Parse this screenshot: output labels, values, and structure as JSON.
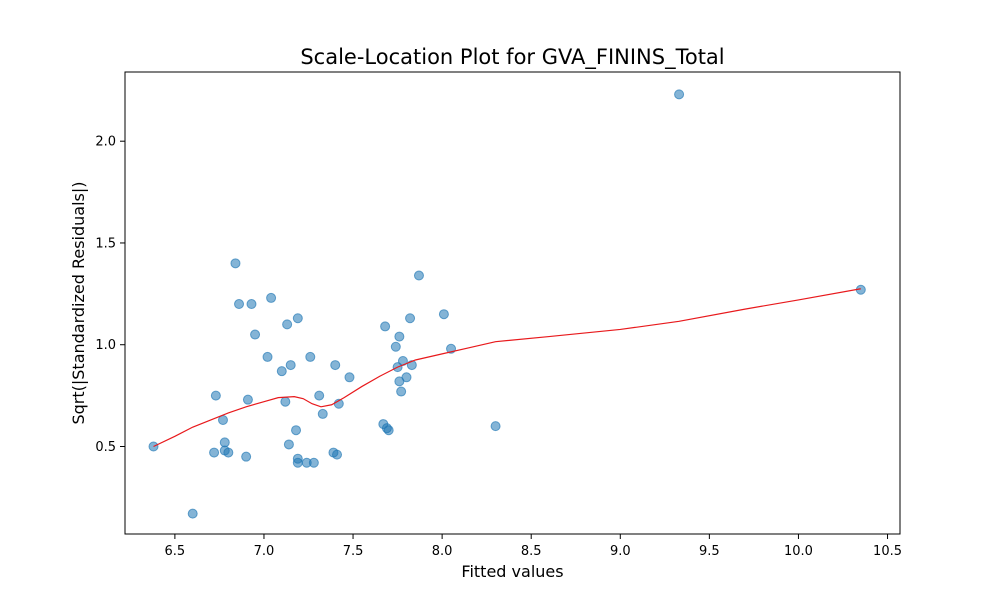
{
  "chart_data": {
    "type": "scatter",
    "title": "Scale-Location Plot for GVA_FININS_Total",
    "xlabel": "Fitted values",
    "ylabel": "Sqrt(|Standardized Residuals|)",
    "xlim": [
      6.22,
      10.57
    ],
    "ylim": [
      0.07,
      2.34
    ],
    "xticks": [
      6.5,
      7.0,
      7.5,
      8.0,
      8.5,
      9.0,
      9.5,
      10.0,
      10.5
    ],
    "xtick_labels": [
      "6.5",
      "7.0",
      "7.5",
      "8.0",
      "8.5",
      "9.0",
      "9.5",
      "10.0",
      "10.5"
    ],
    "yticks": [
      0.5,
      1.0,
      1.5,
      2.0
    ],
    "ytick_labels": [
      "0.5",
      "1.0",
      "1.5",
      "2.0"
    ],
    "grid": false,
    "colors": {
      "points": "#1f77b4",
      "smoother": "#e8191c"
    },
    "points": [
      {
        "x": 6.38,
        "y": 0.5
      },
      {
        "x": 6.6,
        "y": 0.17
      },
      {
        "x": 6.72,
        "y": 0.47
      },
      {
        "x": 6.73,
        "y": 0.75
      },
      {
        "x": 6.77,
        "y": 0.63
      },
      {
        "x": 6.78,
        "y": 0.52
      },
      {
        "x": 6.78,
        "y": 0.48
      },
      {
        "x": 6.8,
        "y": 0.47
      },
      {
        "x": 6.84,
        "y": 1.4
      },
      {
        "x": 6.86,
        "y": 1.2
      },
      {
        "x": 6.9,
        "y": 0.45
      },
      {
        "x": 6.91,
        "y": 0.73
      },
      {
        "x": 6.93,
        "y": 1.2
      },
      {
        "x": 6.95,
        "y": 1.05
      },
      {
        "x": 7.02,
        "y": 0.94
      },
      {
        "x": 7.04,
        "y": 1.23
      },
      {
        "x": 7.1,
        "y": 0.87
      },
      {
        "x": 7.12,
        "y": 0.72
      },
      {
        "x": 7.13,
        "y": 1.1
      },
      {
        "x": 7.14,
        "y": 0.51
      },
      {
        "x": 7.15,
        "y": 0.9
      },
      {
        "x": 7.18,
        "y": 0.58
      },
      {
        "x": 7.19,
        "y": 1.13
      },
      {
        "x": 7.19,
        "y": 0.44
      },
      {
        "x": 7.19,
        "y": 0.42
      },
      {
        "x": 7.24,
        "y": 0.42
      },
      {
        "x": 7.26,
        "y": 0.94
      },
      {
        "x": 7.28,
        "y": 0.42
      },
      {
        "x": 7.31,
        "y": 0.75
      },
      {
        "x": 7.33,
        "y": 0.66
      },
      {
        "x": 7.39,
        "y": 0.47
      },
      {
        "x": 7.4,
        "y": 0.9
      },
      {
        "x": 7.41,
        "y": 0.46
      },
      {
        "x": 7.42,
        "y": 0.71
      },
      {
        "x": 7.48,
        "y": 0.84
      },
      {
        "x": 7.67,
        "y": 0.61
      },
      {
        "x": 7.68,
        "y": 1.09
      },
      {
        "x": 7.69,
        "y": 0.59
      },
      {
        "x": 7.7,
        "y": 0.58
      },
      {
        "x": 7.74,
        "y": 0.99
      },
      {
        "x": 7.75,
        "y": 0.89
      },
      {
        "x": 7.76,
        "y": 1.04
      },
      {
        "x": 7.76,
        "y": 0.82
      },
      {
        "x": 7.77,
        "y": 0.77
      },
      {
        "x": 7.78,
        "y": 0.92
      },
      {
        "x": 7.8,
        "y": 0.84
      },
      {
        "x": 7.82,
        "y": 1.13
      },
      {
        "x": 7.83,
        "y": 0.9
      },
      {
        "x": 7.87,
        "y": 1.34
      },
      {
        "x": 8.01,
        "y": 1.15
      },
      {
        "x": 8.05,
        "y": 0.98
      },
      {
        "x": 8.3,
        "y": 0.6
      },
      {
        "x": 9.33,
        "y": 2.23
      },
      {
        "x": 10.35,
        "y": 1.27
      }
    ],
    "smoother": [
      {
        "x": 6.38,
        "y": 0.5
      },
      {
        "x": 6.5,
        "y": 0.55
      },
      {
        "x": 6.6,
        "y": 0.595
      },
      {
        "x": 6.7,
        "y": 0.63
      },
      {
        "x": 6.8,
        "y": 0.665
      },
      {
        "x": 6.9,
        "y": 0.695
      },
      {
        "x": 7.0,
        "y": 0.72
      },
      {
        "x": 7.08,
        "y": 0.74
      },
      {
        "x": 7.17,
        "y": 0.745
      },
      {
        "x": 7.22,
        "y": 0.735
      },
      {
        "x": 7.27,
        "y": 0.71
      },
      {
        "x": 7.32,
        "y": 0.695
      },
      {
        "x": 7.38,
        "y": 0.705
      },
      {
        "x": 7.45,
        "y": 0.74
      },
      {
        "x": 7.55,
        "y": 0.795
      },
      {
        "x": 7.65,
        "y": 0.845
      },
      {
        "x": 7.75,
        "y": 0.89
      },
      {
        "x": 7.85,
        "y": 0.925
      },
      {
        "x": 8.0,
        "y": 0.955
      },
      {
        "x": 8.15,
        "y": 0.985
      },
      {
        "x": 8.3,
        "y": 1.015
      },
      {
        "x": 8.6,
        "y": 1.04
      },
      {
        "x": 9.0,
        "y": 1.075
      },
      {
        "x": 9.33,
        "y": 1.115
      },
      {
        "x": 9.7,
        "y": 1.175
      },
      {
        "x": 10.0,
        "y": 1.22
      },
      {
        "x": 10.35,
        "y": 1.275
      }
    ]
  }
}
